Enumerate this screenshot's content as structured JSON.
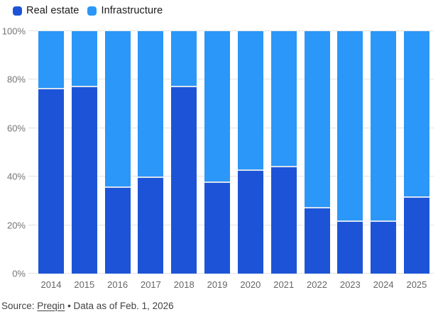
{
  "legend": {
    "items": [
      {
        "label": "Real estate",
        "color": "#1d54d7"
      },
      {
        "label": "Infrastructure",
        "color": "#2b97f8"
      }
    ]
  },
  "chart_data": {
    "type": "bar",
    "variant": "stacked-percent-column",
    "categories": [
      "2014",
      "2015",
      "2016",
      "2017",
      "2018",
      "2019",
      "2020",
      "2021",
      "2022",
      "2023",
      "2024",
      "2025"
    ],
    "series": [
      {
        "name": "Real estate",
        "color": "#1d54d7",
        "values": [
          76.5,
          77.5,
          36,
          40,
          77.5,
          38,
          43,
          44.5,
          27.5,
          22,
          22,
          32
        ]
      },
      {
        "name": "Infrastructure",
        "color": "#2b97f8",
        "values": [
          23.5,
          22.5,
          64,
          60,
          22.5,
          62,
          57,
          55.5,
          72.5,
          78,
          78,
          68
        ]
      }
    ],
    "ylim": [
      0,
      100
    ],
    "yticks": [
      0,
      20,
      40,
      60,
      80,
      100
    ],
    "ytick_labels": [
      "0%",
      "20%",
      "40%",
      "60%",
      "80%",
      "100%"
    ],
    "grid": true,
    "legend_position": "top-left"
  },
  "footer": {
    "prefix": "Source: ",
    "link_text": "Preqin",
    "suffix": " • Data as of Feb. 1, 2026"
  }
}
